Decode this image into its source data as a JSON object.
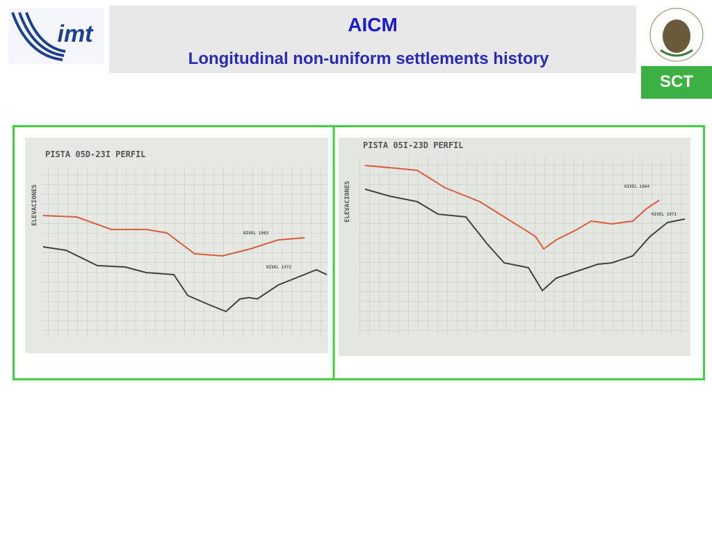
{
  "header": {
    "title": "AICM",
    "subtitle": "Longitudinal non-uniform settlements history",
    "left_logo": "imt",
    "right_logo": "SCT"
  },
  "photos": [
    {
      "title": "PISTA 05D-23I PERFIL",
      "axis_label": "ELEVACIONES",
      "curve_labels": [
        "NIVEL 1963",
        "NIVEL 1972"
      ]
    },
    {
      "title": "PISTA 05I-23D PERFIL",
      "axis_label": "ELEVACIONES",
      "curve_labels": [
        "NIVEL 1964",
        "NIVEL 1971"
      ]
    }
  ]
}
